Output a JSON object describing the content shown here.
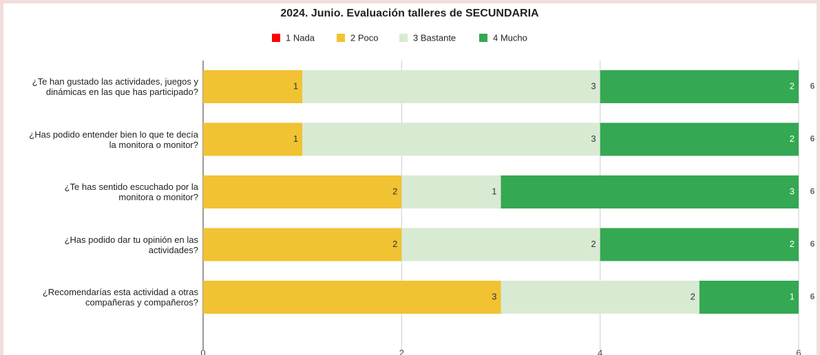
{
  "chart_data": {
    "type": "stacked-bar-horizontal",
    "title": "2024. Junio. Evaluación talleres de SECUNDARIA",
    "categories": [
      "¿Te han gustado las actividades, juegos y\ndinámicas en las que has participado?",
      "¿Has podido entender bien lo que te decía\nla monitora o monitor?",
      "¿Te has sentido escuchado por la\nmonitora o monitor?",
      "¿Has podido dar tu opinión en las\nactividades?",
      "¿Recomendarías esta actividad a otras\ncompañeras y compañeros?"
    ],
    "series": [
      {
        "name": "1 Nada",
        "color": "#ff0000",
        "values": [
          0,
          0,
          0,
          0,
          0
        ]
      },
      {
        "name": "2 Poco",
        "color": "#f1c232",
        "values": [
          1,
          1,
          2,
          2,
          3
        ]
      },
      {
        "name": "3 Bastante",
        "color": "#d9ead3",
        "values": [
          3,
          3,
          1,
          2,
          2
        ]
      },
      {
        "name": "4 Mucho",
        "color": "#34a853",
        "values": [
          2,
          2,
          3,
          2,
          1
        ]
      }
    ],
    "totals": [
      6,
      6,
      6,
      6,
      6
    ],
    "xlim": [
      0,
      6
    ],
    "xticks": [
      0,
      2,
      4,
      6
    ],
    "grid": true,
    "legend": "top"
  }
}
